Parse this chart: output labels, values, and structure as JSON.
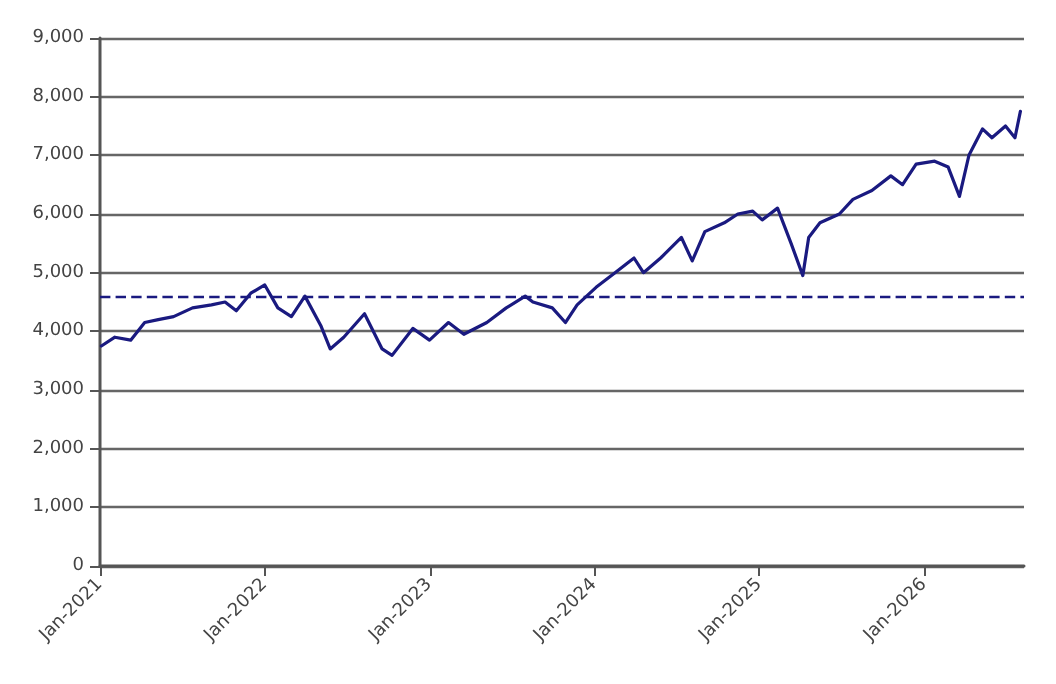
{
  "chart_data": {
    "type": "line",
    "x": [
      "2021-01-04",
      "2021-02-03",
      "2021-03-10",
      "2021-04-10",
      "2021-05-10",
      "2021-06-13",
      "2021-07-25",
      "2021-09-05",
      "2021-10-05",
      "2021-10-30",
      "2021-12-01",
      "2022-01-01",
      "2022-01-30",
      "2022-03-01",
      "2022-03-31",
      "2022-05-05",
      "2022-05-26",
      "2022-06-25",
      "2022-08-10",
      "2022-09-18",
      "2022-10-10",
      "2022-11-25",
      "2023-01-01",
      "2023-02-12",
      "2023-03-18",
      "2023-05-08",
      "2023-06-20",
      "2023-08-01",
      "2023-08-18",
      "2023-09-30",
      "2023-10-29",
      "2023-11-24",
      "2024-01-05",
      "2024-02-16",
      "2024-03-29",
      "2024-04-19",
      "2024-05-27",
      "2024-07-12",
      "2024-08-05",
      "2024-09-02",
      "2024-10-15",
      "2024-11-14",
      "2024-12-17",
      "2025-01-07",
      "2025-02-10",
      "2025-03-12",
      "2025-04-07",
      "2025-04-20",
      "2025-05-15",
      "2025-06-27",
      "2025-07-27",
      "2025-09-07",
      "2025-10-19",
      "2025-11-14",
      "2025-12-14",
      "2026-01-24",
      "2026-02-23",
      "2026-03-20",
      "2026-04-10",
      "2026-05-10",
      "2026-05-31",
      "2026-06-30",
      "2026-07-21",
      "2026-08-02"
    ],
    "series": [
      {
        "color": "#1a1a80",
        "values": [
          3750,
          3900,
          3850,
          4150,
          4200,
          4250,
          4400,
          4450,
          4500,
          4350,
          4650,
          4790,
          4400,
          4250,
          4600,
          4100,
          3700,
          3900,
          4300,
          3700,
          3590,
          4050,
          3850,
          4150,
          3950,
          4150,
          4400,
          4600,
          4500,
          4400,
          4150,
          4450,
          4750,
          5000,
          5250,
          5000,
          5250,
          5600,
          5200,
          5700,
          5850,
          6000,
          6050,
          5900,
          6100,
          5500,
          4950,
          5600,
          5850,
          6000,
          6250,
          6400,
          6650,
          6500,
          6850,
          6900,
          6800,
          6300,
          7000,
          7450,
          7300,
          7500,
          7300,
          7750
        ]
      }
    ],
    "xlim": [
      "2021-01-01",
      "2026-08-10"
    ],
    "xticks": [
      {
        "value": "2021-01-01",
        "label": "Jan-2021"
      },
      {
        "value": "2022-01-01",
        "label": "Jan-2022"
      },
      {
        "value": "2023-01-01",
        "label": "Jan-2023"
      },
      {
        "value": "2024-01-01",
        "label": "Jan-2024"
      },
      {
        "value": "2025-01-01",
        "label": "Jan-2025"
      },
      {
        "value": "2026-01-01",
        "label": "Jan-2026"
      }
    ],
    "ylim": [
      0,
      9000
    ],
    "yticks": [
      {
        "value": 0,
        "label": "0"
      },
      {
        "value": 1000,
        "label": "1,000"
      },
      {
        "value": 2000,
        "label": "2,000"
      },
      {
        "value": 3000,
        "label": "3,000"
      },
      {
        "value": 4000,
        "label": "4,000"
      },
      {
        "value": 5000,
        "label": "5,000"
      },
      {
        "value": 6000,
        "label": "6,000"
      },
      {
        "value": 7000,
        "label": "7,000"
      },
      {
        "value": 8000,
        "label": "8,000"
      },
      {
        "value": 9000,
        "label": "9,000"
      }
    ],
    "ref_lines": [
      {
        "axis": "y",
        "value": 4600,
        "color": "#1a1a80",
        "line_style": "dashed"
      }
    ],
    "grid": "y",
    "marker": "none",
    "line_style": "solid"
  }
}
